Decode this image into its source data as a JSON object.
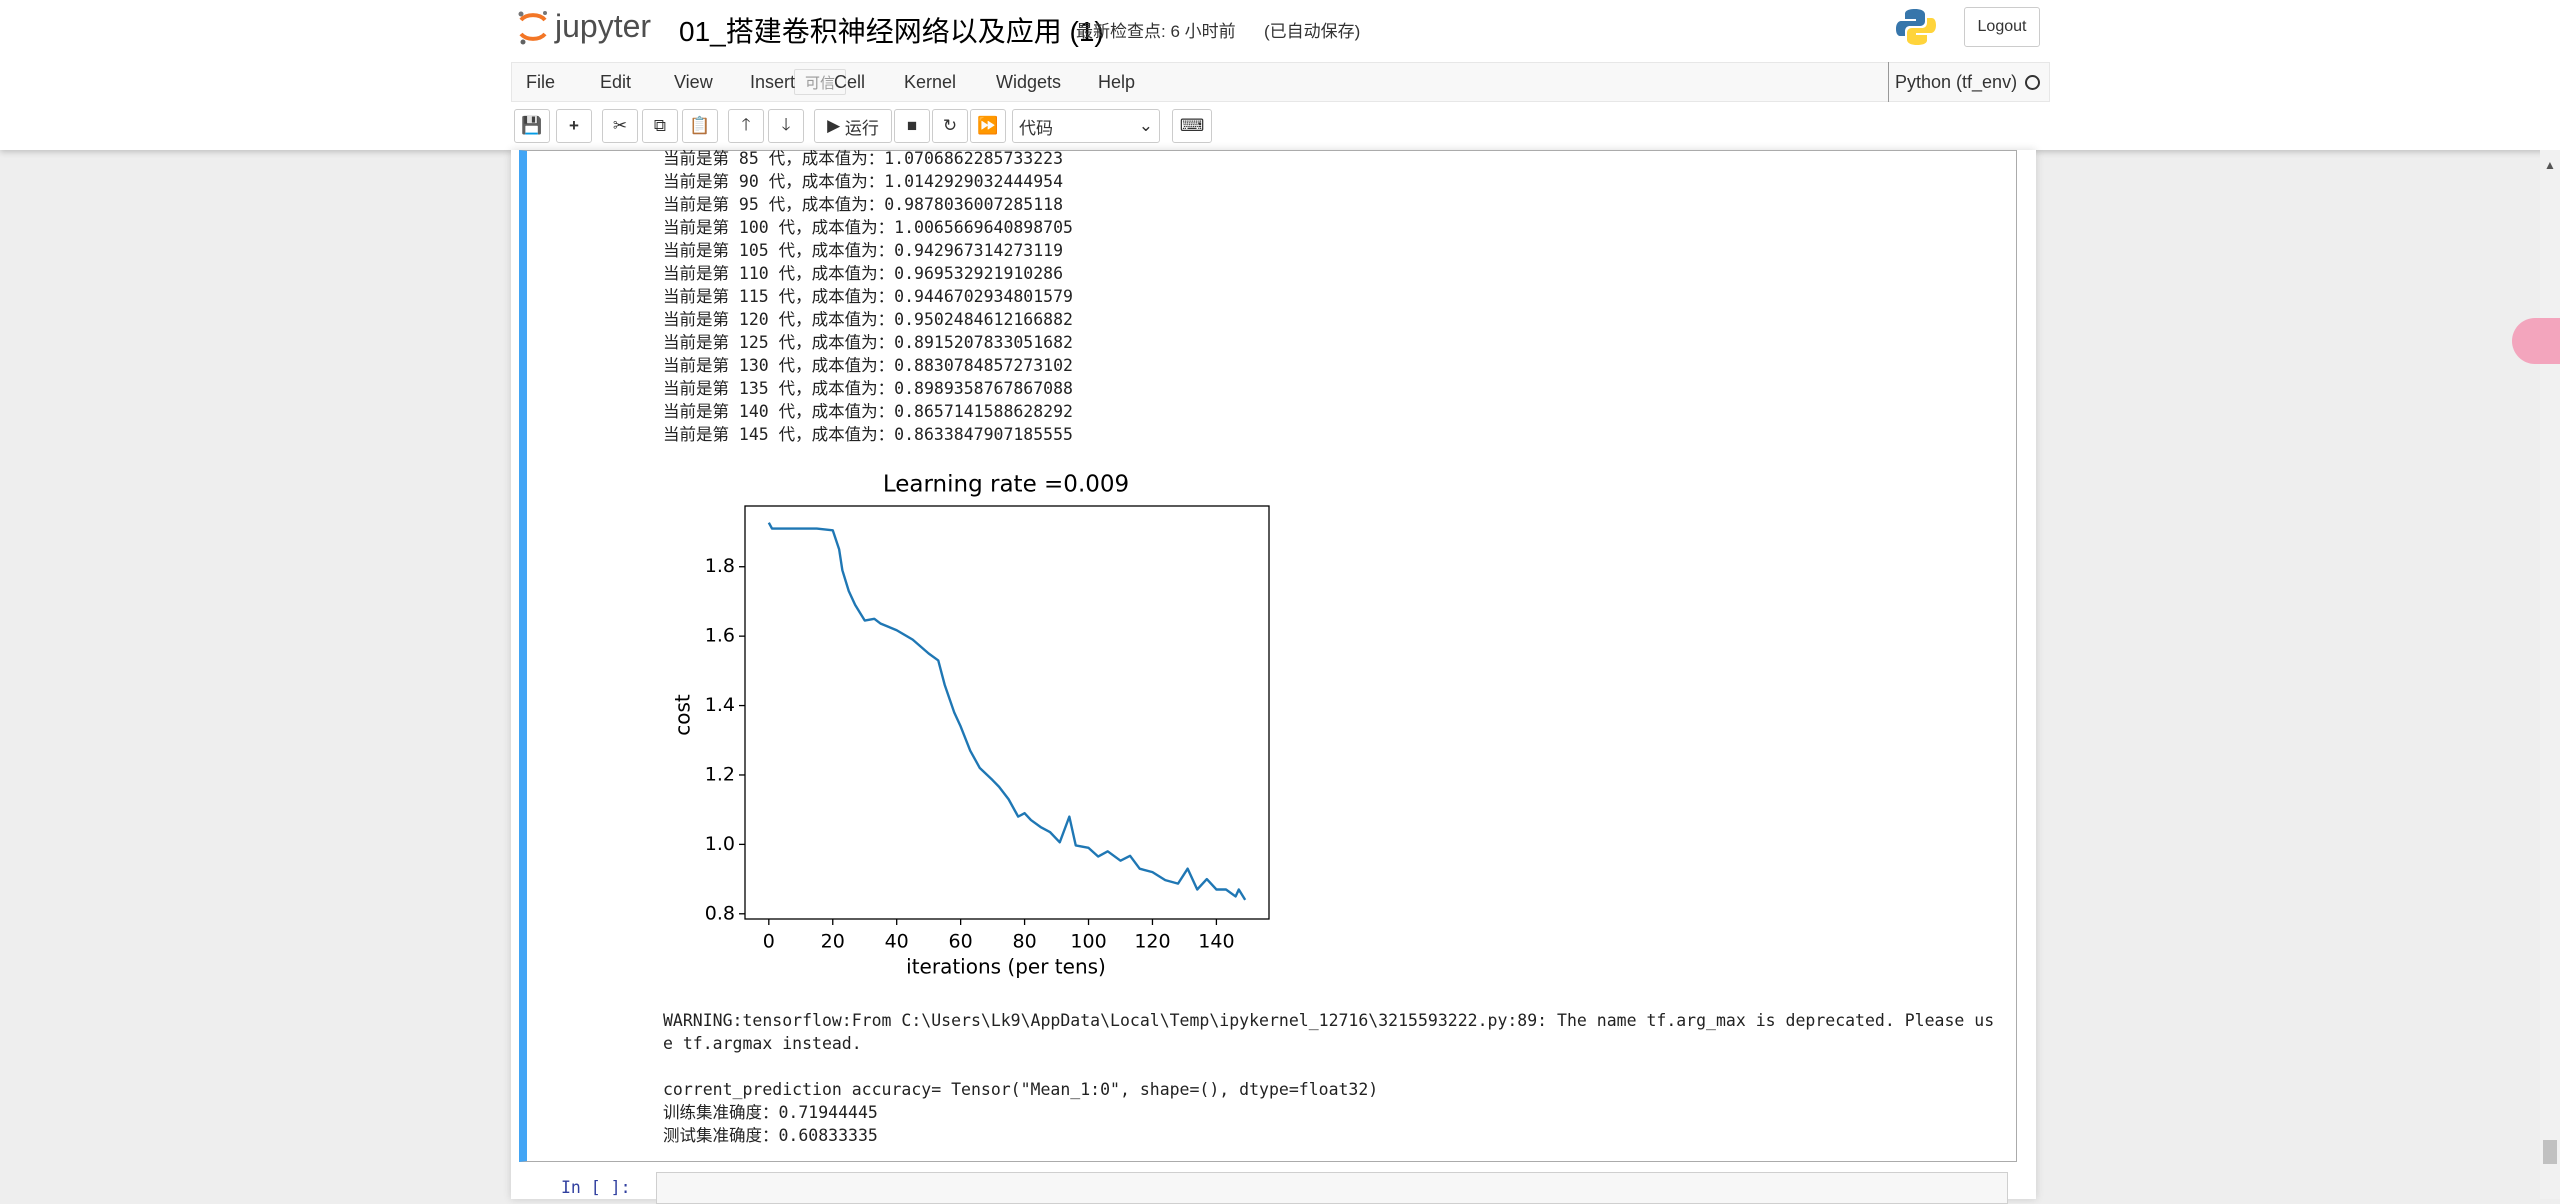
{
  "header": {
    "logo": "jupyter",
    "notebook_title": "01_搭建卷积神经网络以及应用 (1)",
    "checkpoint": "最新检查点: 6 小时前",
    "autosave": "(已自动保存)",
    "logout": "Logout"
  },
  "menu": {
    "items": [
      "File",
      "Edit",
      "View",
      "Insert",
      "Cell",
      "Kernel",
      "Widgets",
      "Help"
    ],
    "trusted": "可信",
    "kernel": "Python (tf_env)"
  },
  "toolbar": {
    "run": "运行",
    "cell_type": "代码"
  },
  "output": {
    "log_lines": [
      "当前是第 85 代，成本值为：1.0706862285733223",
      "当前是第 90 代，成本值为：1.0142929032444954",
      "当前是第 95 代，成本值为：0.9878036007285118",
      "当前是第 100 代，成本值为：1.0065669640898705",
      "当前是第 105 代，成本值为：0.942967314273119",
      "当前是第 110 代，成本值为：0.969532921910286",
      "当前是第 115 代，成本值为：0.9446702934801579",
      "当前是第 120 代，成本值为：0.9502484612166882",
      "当前是第 125 代，成本值为：0.8915207833051682",
      "当前是第 130 代，成本值为：0.8830784857273102",
      "当前是第 135 代，成本值为：0.8989358767867088",
      "当前是第 140 代，成本值为：0.8657141588628292",
      "当前是第 145 代，成本值为：0.8633847907185555"
    ],
    "warning": "WARNING:tensorflow:From C:\\Users\\Lk9\\AppData\\Local\\Temp\\ipykernel_12716\\3215593222.py:89: The name tf.arg_max is deprecated. Please use tf.argmax instead.",
    "result_lines": [
      "corrent_prediction accuracy= Tensor(\"Mean_1:0\", shape=(), dtype=float32)",
      "训练集准确度：0.71944445",
      "测试集准确度：0.60833335"
    ]
  },
  "next_cell": {
    "prompt": "In [ ]:"
  },
  "chart_data": {
    "type": "line",
    "title": "Learning rate =0.009",
    "x_label": "iterations (per tens)",
    "y_label": "cost",
    "x": [
      0,
      1,
      5,
      10,
      15,
      20,
      22,
      23,
      25,
      27,
      30,
      33,
      35,
      40,
      45,
      50,
      53,
      55,
      58,
      60,
      63,
      66,
      70,
      72,
      75,
      78,
      80,
      82,
      85,
      88,
      91,
      94,
      96,
      100,
      103,
      106,
      110,
      113,
      116,
      120,
      124,
      128,
      131,
      134,
      137,
      140,
      143,
      146,
      147,
      149
    ],
    "series": [
      {
        "color": "#1f77b4",
        "values": [
          1.927,
          1.91,
          1.91,
          1.91,
          1.91,
          1.905,
          1.85,
          1.79,
          1.73,
          1.69,
          1.645,
          1.65,
          1.636,
          1.617,
          1.59,
          1.55,
          1.53,
          1.46,
          1.38,
          1.34,
          1.27,
          1.22,
          1.185,
          1.166,
          1.13,
          1.08,
          1.09,
          1.07,
          1.05,
          1.035,
          1.006,
          1.08,
          0.997,
          0.99,
          0.965,
          0.98,
          0.953,
          0.967,
          0.93,
          0.92,
          0.897,
          0.887,
          0.93,
          0.87,
          0.9,
          0.87,
          0.87,
          0.85,
          0.87,
          0.84
        ]
      }
    ],
    "xlim": [
      -7.45,
      156.45
    ],
    "ylim": [
      0.785,
      1.975
    ],
    "xticks": [
      0,
      20,
      40,
      60,
      80,
      100,
      120,
      140
    ],
    "yticks": [
      0.8,
      {
        "value": 1,
        "label": "1.0"
      },
      1.2,
      1.4,
      1.6,
      1.8
    ]
  }
}
